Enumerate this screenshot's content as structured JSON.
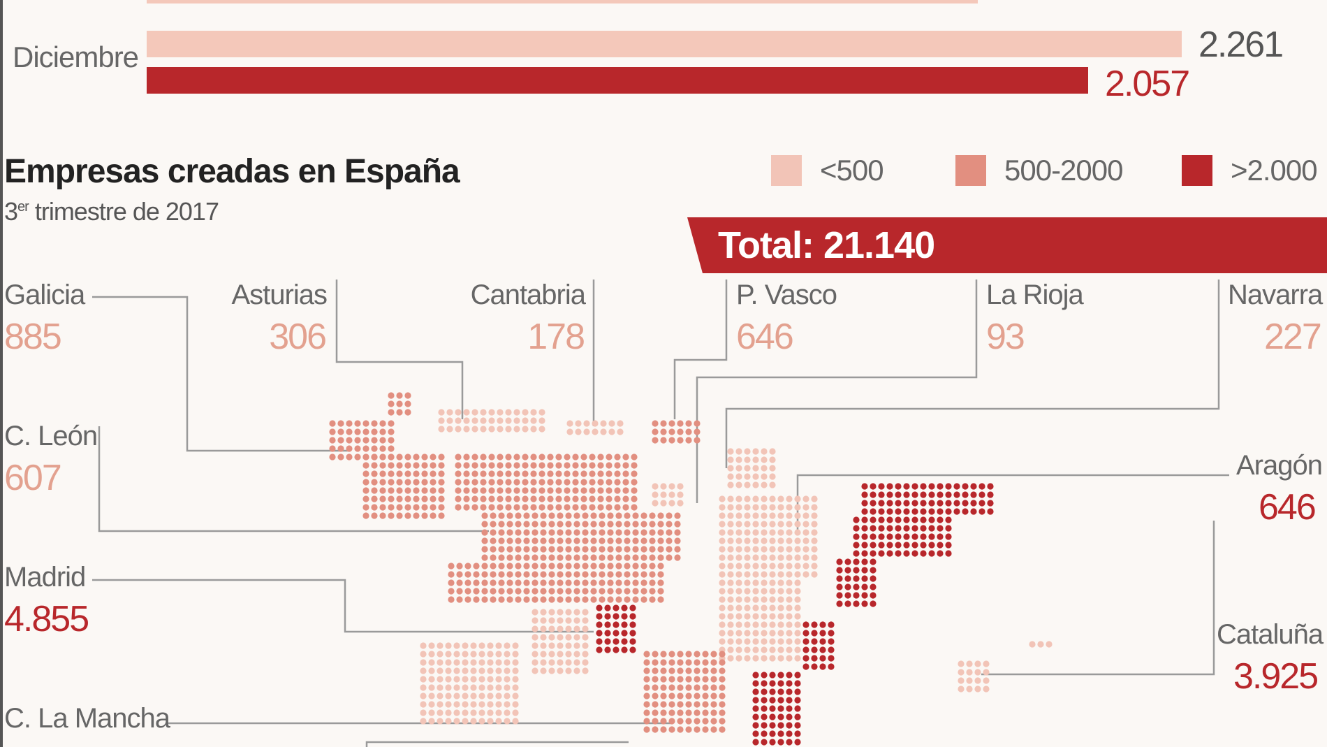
{
  "colors": {
    "low": "#f2c4b7",
    "mid": "#e28f80",
    "high": "#b8272b",
    "bar_previous": "#f4c8ba",
    "bar_current": "#b8272b",
    "text_low": "#e3a18f",
    "text_high": "#b8272b"
  },
  "top_chart": {
    "month_label": "Diciembre",
    "values": [
      {
        "value": "2.261",
        "color_key": "bar_previous"
      },
      {
        "value": "2.057",
        "color_key": "bar_current"
      }
    ]
  },
  "map": {
    "title": "Empresas creadas en España",
    "subtitle_prefix": "3",
    "subtitle_sup": "er",
    "subtitle_rest": " trimestre de 2017",
    "legend": [
      {
        "label": "<500",
        "color_key": "low"
      },
      {
        "label": "500-2000",
        "color_key": "mid"
      },
      {
        "label": ">2.000",
        "color_key": "high"
      }
    ],
    "total_label": "Total: 21.140"
  },
  "chart_data": {
    "type": "choropleth-dot-map",
    "title": "Empresas creadas en España",
    "subtitle": "3er trimestre de 2017",
    "total": 21140,
    "legend_bins": [
      "<500",
      "500-2000",
      ">2.000"
    ],
    "regions": [
      {
        "name": "Galicia",
        "value": 885,
        "label": "885",
        "bin": "500-2000"
      },
      {
        "name": "Asturias",
        "value": 306,
        "label": "306",
        "bin": "<500"
      },
      {
        "name": "Cantabria",
        "value": 178,
        "label": "178",
        "bin": "<500"
      },
      {
        "name": "P. Vasco",
        "value": 646,
        "label": "646",
        "bin": "500-2000"
      },
      {
        "name": "La Rioja",
        "value": 93,
        "label": "93",
        "bin": "<500"
      },
      {
        "name": "Navarra",
        "value": 227,
        "label": "227",
        "bin": "<500"
      },
      {
        "name": "C. León",
        "value": 607,
        "label": "607",
        "bin": "500-2000"
      },
      {
        "name": "Aragón",
        "value": 646,
        "label": "646",
        "bin": "500-2000"
      },
      {
        "name": "Madrid",
        "value": 4855,
        "label": "4.855",
        "bin": ">2.000"
      },
      {
        "name": "Cataluña",
        "value": 3925,
        "label": "3.925",
        "bin": ">2.000"
      },
      {
        "name": "C. La Mancha",
        "value": null,
        "label": "",
        "bin": null
      }
    ],
    "bars": {
      "category": "Diciembre",
      "values": [
        2261,
        2057
      ]
    }
  }
}
